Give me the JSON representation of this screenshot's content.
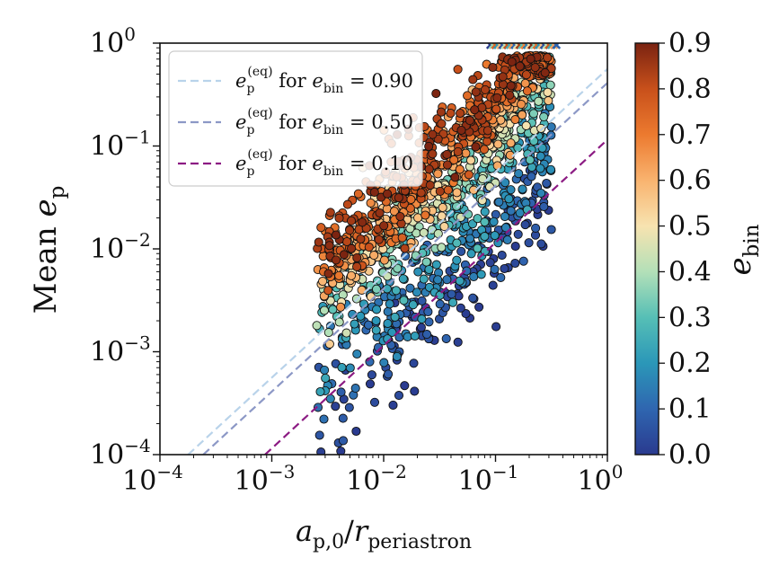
{
  "chart_data": {
    "type": "scatter",
    "title": "",
    "xlabel": "a_{p,0}/r_{periastron}",
    "ylabel": "Mean e_p",
    "xscale": "log",
    "yscale": "log",
    "xlim": [
      0.0001,
      1
    ],
    "ylim": [
      0.0001,
      1
    ],
    "x_tick_labels": [
      "10^{-4}",
      "10^{-3}",
      "10^{-2}",
      "10^{-1}",
      "10^{0}"
    ],
    "y_tick_labels": [
      "10^{-4}",
      "10^{-3}",
      "10^{-2}",
      "10^{-1}",
      "10^{0}"
    ],
    "grid": false,
    "legend_position": "top-left",
    "colorbar": {
      "label": "e_{bin}",
      "range": [
        0.0,
        0.9
      ],
      "tick_labels": [
        "0.0",
        "0.1",
        "0.2",
        "0.3",
        "0.4",
        "0.5",
        "0.6",
        "0.7",
        "0.8",
        "0.9"
      ],
      "colormap": [
        "#2a3a8f",
        "#2f66b0",
        "#2b97b8",
        "#56bfb6",
        "#b3e0b8",
        "#f7e3b0",
        "#f9b36f",
        "#ec7a2f",
        "#c8501b",
        "#7a2311"
      ]
    },
    "equilibrium_lines": [
      {
        "label_prefix": "e_p^{(eq)} for e_{bin} = ",
        "e_bin_value": "0.90",
        "color": "#b9d3ea",
        "y_at_x1": 0.56
      },
      {
        "label_prefix": "e_p^{(eq)} for e_{bin} = ",
        "e_bin_value": "0.50",
        "color": "#8c98c6",
        "y_at_x1": 0.41
      },
      {
        "label_prefix": "e_p^{(eq)} for e_{bin} = ",
        "e_bin_value": "0.10",
        "color": "#8c1b83",
        "y_at_x1": 0.115
      }
    ],
    "scatter_trend": {
      "description_relation": "e_p increases roughly linearly with x, higher e_bin gives larger e_p",
      "x_range": [
        0.002,
        0.3
      ],
      "unstable_marker": "x",
      "unstable_y": 1.0,
      "unstable_x_range": [
        0.09,
        0.35
      ]
    }
  }
}
